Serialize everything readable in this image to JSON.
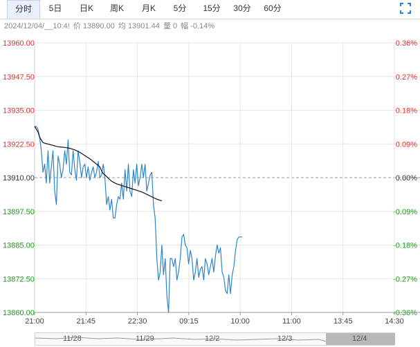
{
  "tabs": [
    {
      "label": "分时",
      "active": true
    },
    {
      "label": "5日"
    },
    {
      "label": "日K"
    },
    {
      "label": "周K"
    },
    {
      "label": "月K"
    },
    {
      "label": "5分"
    },
    {
      "label": "15分"
    },
    {
      "label": "30分"
    },
    {
      "label": "60分"
    }
  ],
  "info": {
    "datetime": "2024/12/04/__10:4!",
    "price": "价 13890.00",
    "avg": "均 13901.44",
    "vol": "量 0",
    "change": "幅 -0.14%"
  },
  "chart_data": {
    "type": "line",
    "ylim": [
      13860,
      13960
    ],
    "prev_close": 13910,
    "y_ticks_left": [
      "13960.00",
      "13947.50",
      "13935.00",
      "13922.50",
      "13910.00",
      "13897.50",
      "13885.00",
      "13872.50",
      "13860.00"
    ],
    "y_ticks_right": [
      "0.36%",
      "0.27%",
      "0.18%",
      "0.09%",
      "0.00%",
      "-0.09%",
      "-0.18%",
      "-0.27%",
      "-0.36%"
    ],
    "x_ticks": [
      "21:00",
      "21:45",
      "22:30",
      "09:15",
      "10:00",
      "11:00",
      "13:45",
      "14:30"
    ],
    "colors": {
      "up": "#e03030",
      "down": "#1a9a1a",
      "flat": "#333333",
      "price": "#2a85c9",
      "avg": "#111111",
      "grid": "#e6e6e6"
    },
    "series": [
      {
        "values": [
          13929,
          13929,
          13928,
          13925,
          13920,
          13912,
          13915,
          13908,
          13920,
          13908,
          13914,
          13920,
          13905,
          13900,
          13918,
          13915,
          13910,
          13913,
          13920,
          13915,
          13924,
          13912,
          13911,
          13920,
          13913,
          13909,
          13920,
          13916,
          13910,
          13914,
          13915,
          13910,
          13914,
          13909,
          13912,
          13914,
          13910,
          13912,
          13916,
          13910,
          13911,
          13915,
          13910,
          13900,
          13903,
          13898,
          13902,
          13895,
          13895,
          13900,
          13903,
          13902,
          13908,
          13902,
          13913,
          13905,
          13915,
          13905,
          13903,
          13913,
          13908,
          13915,
          13907,
          13910,
          13915,
          13910,
          13915,
          13905,
          13908,
          13911,
          13912,
          13900,
          13895,
          13880,
          13872,
          13875,
          13885,
          13874,
          13880,
          13866,
          13860,
          13880,
          13880,
          13877,
          13880,
          13872,
          13875,
          13880,
          13888,
          13889,
          13885,
          13884,
          13878,
          13883,
          13880,
          13872,
          13875,
          13880,
          13873,
          13876,
          13877,
          13872,
          13880,
          13878,
          13874,
          13877,
          13880,
          13875,
          13881,
          13885,
          13882,
          13884,
          13875,
          13873,
          13868,
          13867,
          13874,
          13867,
          13874,
          13877,
          13883,
          13887,
          13888,
          13888,
          13888
        ]
      },
      {
        "values": [
          13929,
          13928,
          13927,
          13925,
          13924,
          13923,
          13922.8,
          13922.6,
          13922.5,
          13922.3,
          13922.1,
          13922,
          13921.8,
          13921.6,
          13921.5,
          13921.4,
          13921.3,
          13921.3,
          13921.2,
          13921.1,
          13921,
          13920.9,
          13920.7,
          13920.5,
          13920.3,
          13920,
          13919.7,
          13919.4,
          13919,
          13918.6,
          13918.2,
          13917.8,
          13917.4,
          13917,
          13916.5,
          13916,
          13915.5,
          13915,
          13914.5,
          13914,
          13912.5,
          13911.5,
          13911,
          13910.4,
          13909.8,
          13909.2,
          13908.7,
          13908.3,
          13908,
          13907.7,
          13907.5,
          13907.3,
          13907.1,
          13906.9,
          13906.7,
          13906.5,
          13906.3,
          13906.1,
          13905.9,
          13905.7,
          13905.5,
          13905.3,
          13905.1,
          13904.9,
          13904.7,
          13904.4,
          13904.1,
          13903.8,
          13903.5,
          13903.2,
          13902.9,
          13902.6,
          13902.3,
          13902,
          13901.8,
          13901.6,
          13901.44
        ]
      }
    ]
  },
  "navigator": {
    "labels": [
      "11/28",
      "11/29",
      "12/2",
      "12/3",
      "12/4"
    ]
  }
}
